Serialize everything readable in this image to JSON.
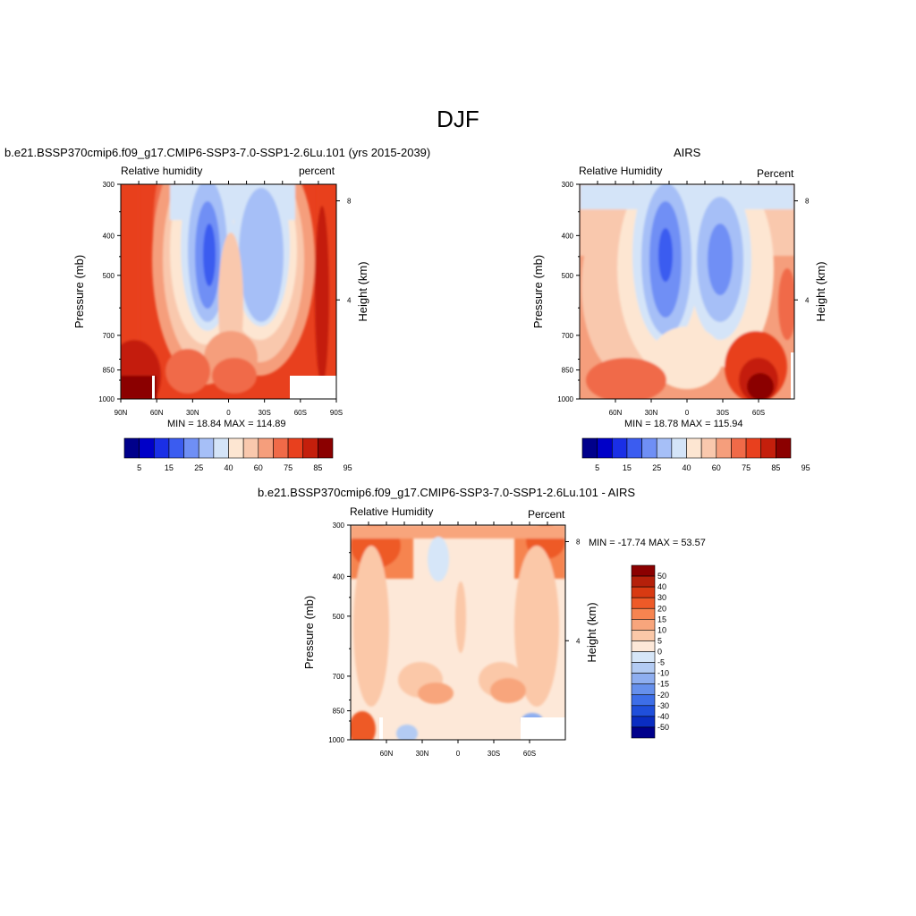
{
  "figure": {
    "title": "DJF"
  },
  "colorbars": {
    "rh": {
      "colors": [
        "#00008b",
        "#0000c8",
        "#1a2fe6",
        "#3b5cf0",
        "#6f8ff5",
        "#a6bff7",
        "#d4e4f8",
        "#fde6d2",
        "#f9c8ad",
        "#f59e7c",
        "#f06a48",
        "#e8401e",
        "#c41f0c",
        "#8b0000"
      ],
      "labels": [
        "5",
        "15",
        "25",
        "40",
        "60",
        "75",
        "85",
        "95"
      ],
      "label_boundaries": [
        1,
        3,
        5,
        7,
        9,
        11,
        13,
        15
      ]
    },
    "diff": {
      "colors": [
        "#8b0000",
        "#b5200a",
        "#d83a12",
        "#ee5a28",
        "#f68450",
        "#f8a57c",
        "#fbc8a8",
        "#fde8d8",
        "#d6e6f8",
        "#b3cbf3",
        "#8eaef0",
        "#6690ec",
        "#3d6ee8",
        "#1f4fdb",
        "#0a2dc2",
        "#00008b"
      ],
      "labels": [
        "50",
        "40",
        "30",
        "20",
        "15",
        "10",
        "5",
        "0",
        "-5",
        "-10",
        "-15",
        "-20",
        "-30",
        "-40",
        "-50"
      ]
    }
  },
  "chart_data": [
    {
      "type": "heatmap",
      "title": "b.e21.BSSP370cmip6.f09_g17.CMIP6-SSP3-7.0-SSP1-2.6Lu.101 (yrs 2015-2039)",
      "left_label": "Relative humidity",
      "right_label": "percent",
      "ylabel": "Pressure (mb)",
      "right_axis_label": "Height (km)",
      "x_ticks": [
        "90N",
        "60N",
        "30N",
        "0",
        "30S",
        "60S",
        "90S"
      ],
      "y_ticks": [
        "300",
        "400",
        "500",
        "700",
        "850",
        "1000"
      ],
      "height_ticks": [
        "8",
        "4"
      ],
      "min_max": "MIN =  18.84  MAX = 114.89",
      "xlim": [
        -90,
        90
      ],
      "ylim": [
        1000,
        300
      ],
      "scale": "rh"
    },
    {
      "type": "heatmap",
      "title": "AIRS",
      "left_label": "Relative Humidity",
      "right_label": "Percent",
      "ylabel": "Pressure (mb)",
      "right_axis_label": "Height (km)",
      "x_ticks": [
        "60N",
        "30N",
        "0",
        "30S",
        "60S"
      ],
      "y_ticks": [
        "300",
        "400",
        "500",
        "700",
        "850",
        "1000"
      ],
      "height_ticks": [
        "8",
        "4"
      ],
      "min_max": "MIN =  18.78  MAX = 115.94",
      "xlim": [
        -90,
        90
      ],
      "ylim": [
        1000,
        300
      ],
      "scale": "rh"
    },
    {
      "type": "heatmap",
      "title": "b.e21.BSSP370cmip6.f09_g17.CMIP6-SSP3-7.0-SSP1-2.6Lu.101 - AIRS",
      "left_label": "Relative Humidity",
      "right_label": "Percent",
      "ylabel": "Pressure (mb)",
      "right_axis_label": "Height (km)",
      "x_ticks": [
        "60N",
        "30N",
        "0",
        "30S",
        "60S"
      ],
      "y_ticks": [
        "300",
        "400",
        "500",
        "700",
        "850",
        "1000"
      ],
      "height_ticks": [
        "8",
        "4"
      ],
      "min_max": "MIN = -17.74  MAX =  53.57",
      "xlim": [
        -90,
        90
      ],
      "ylim": [
        1000,
        300
      ],
      "scale": "diff"
    }
  ]
}
